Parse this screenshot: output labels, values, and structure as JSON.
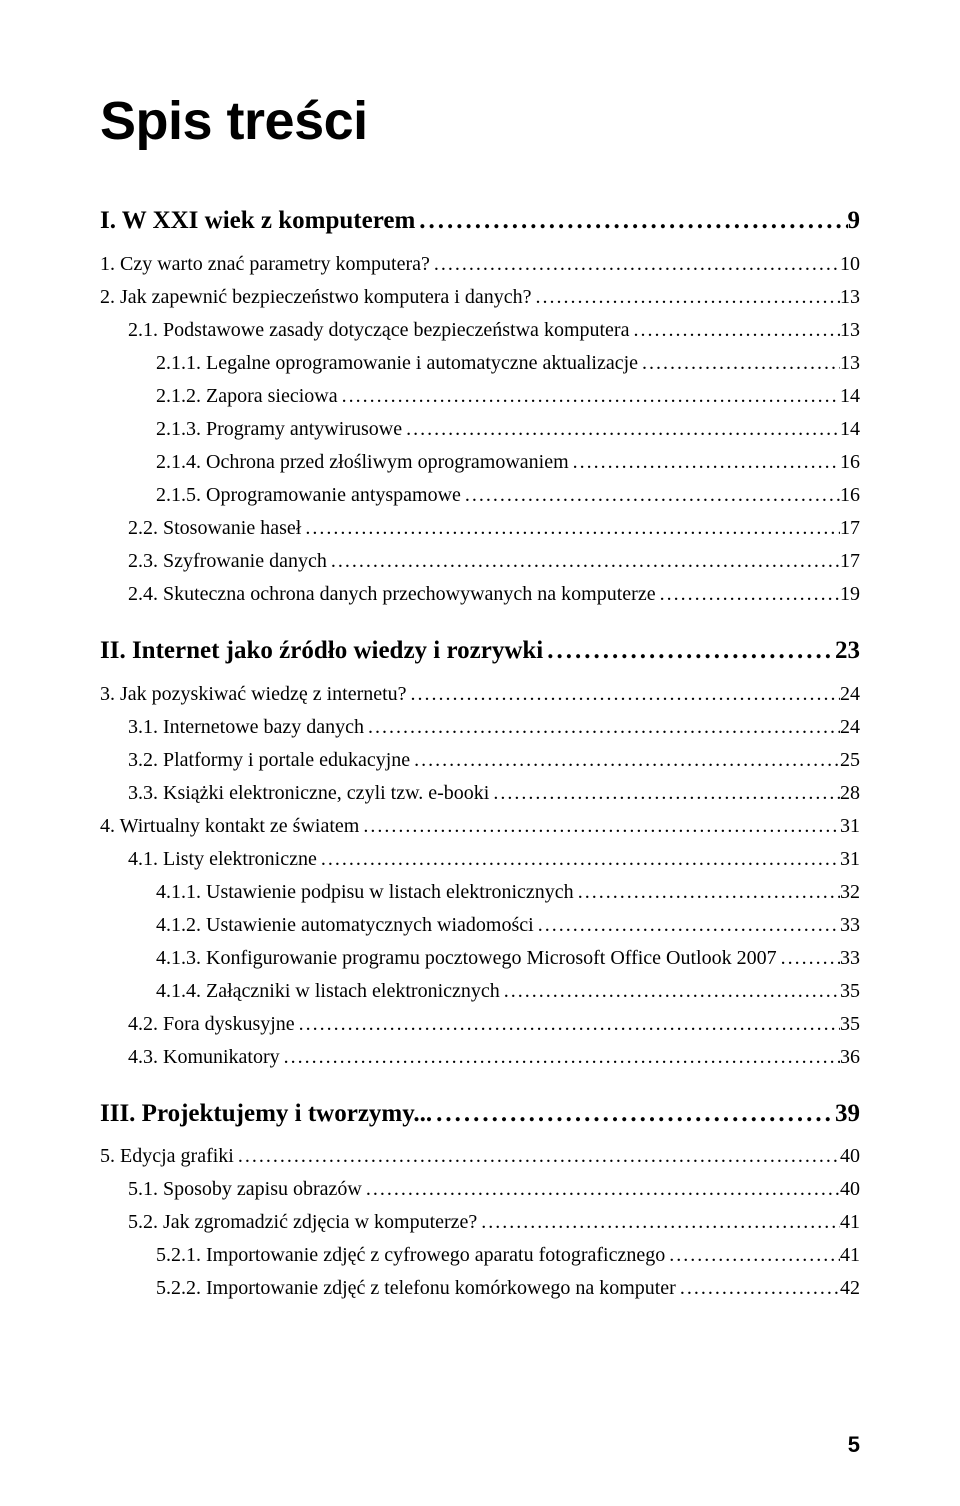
{
  "title": "Spis treści",
  "page_number": "5",
  "chapters": [
    {
      "label": "I. W XXI wiek z komputerem",
      "page": "9",
      "items": [
        {
          "level": 1,
          "label": "1. Czy warto znać parametry komputera?",
          "page": "10"
        },
        {
          "level": 1,
          "label": "2. Jak zapewnić bezpieczeństwo komputera i danych?",
          "page": "13"
        },
        {
          "level": 2,
          "label": "2.1. Podstawowe zasady dotyczące bezpieczeństwa komputera",
          "page": "13"
        },
        {
          "level": 3,
          "label": "2.1.1. Legalne oprogramowanie i automatyczne aktualizacje",
          "page": "13"
        },
        {
          "level": 3,
          "label": "2.1.2. Zapora sieciowa",
          "page": "14"
        },
        {
          "level": 3,
          "label": "2.1.3. Programy antywirusowe",
          "page": "14"
        },
        {
          "level": 3,
          "label": "2.1.4. Ochrona przed złośliwym oprogramowaniem",
          "page": "16"
        },
        {
          "level": 3,
          "label": "2.1.5. Oprogramowanie antyspamowe",
          "page": "16"
        },
        {
          "level": 2,
          "label": "2.2. Stosowanie haseł",
          "page": "17"
        },
        {
          "level": 2,
          "label": "2.3. Szyfrowanie danych",
          "page": "17"
        },
        {
          "level": 2,
          "label": "2.4. Skuteczna ochrona danych przechowywanych na komputerze",
          "page": "19"
        }
      ]
    },
    {
      "label": "II. Internet jako źródło wiedzy i rozrywki",
      "page": "23",
      "items": [
        {
          "level": 1,
          "label": "3. Jak pozyskiwać wiedzę z internetu?",
          "page": "24"
        },
        {
          "level": 2,
          "label": "3.1. Internetowe bazy danych",
          "page": "24"
        },
        {
          "level": 2,
          "label": "3.2. Platformy i portale edukacyjne",
          "page": "25"
        },
        {
          "level": 2,
          "label": "3.3. Książki elektroniczne, czyli tzw. e-booki",
          "page": "28"
        },
        {
          "level": 1,
          "label": "4. Wirtualny kontakt ze światem",
          "page": "31"
        },
        {
          "level": 2,
          "label": "4.1. Listy elektroniczne",
          "page": "31"
        },
        {
          "level": 3,
          "label": "4.1.1. Ustawienie podpisu w listach elektronicznych",
          "page": "32"
        },
        {
          "level": 3,
          "label": "4.1.2. Ustawienie automatycznych wiadomości",
          "page": "33"
        },
        {
          "level": 3,
          "label": "4.1.3. Konfigurowanie programu pocztowego Microsoft Office Outlook 2007",
          "page": "33"
        },
        {
          "level": 3,
          "label": "4.1.4. Załączniki w listach elektronicznych",
          "page": "35"
        },
        {
          "level": 2,
          "label": "4.2. Fora dyskusyjne",
          "page": "35"
        },
        {
          "level": 2,
          "label": "4.3. Komunikatory",
          "page": "36"
        }
      ]
    },
    {
      "label": "III. Projektujemy i tworzymy...",
      "page": "39",
      "items": [
        {
          "level": 1,
          "label": "5. Edycja grafiki",
          "page": "40"
        },
        {
          "level": 2,
          "label": "5.1. Sposoby zapisu obrazów",
          "page": "40"
        },
        {
          "level": 2,
          "label": "5.2. Jak zgromadzić zdjęcia w komputerze?",
          "page": "41"
        },
        {
          "level": 3,
          "label": "5.2.1. Importowanie zdjęć z cyfrowego aparatu fotograficznego",
          "page": "41"
        },
        {
          "level": 3,
          "label": "5.2.2. Importowanie zdjęć z telefonu komórkowego na komputer",
          "page": "42"
        }
      ]
    }
  ]
}
